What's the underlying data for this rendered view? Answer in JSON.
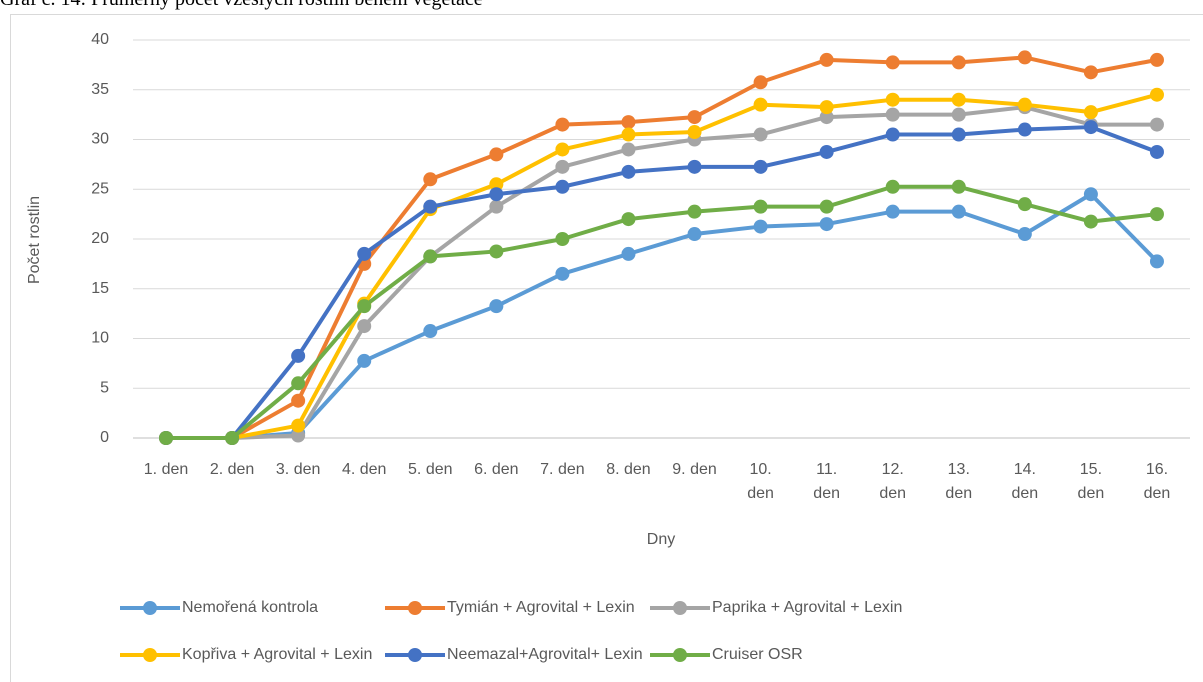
{
  "chart_data": {
    "type": "line",
    "title": "Graf č. 14: Průměrný počet vzešlých rostlin během vegetace",
    "x_label": "Dny",
    "y_label": "Počet rostlin",
    "categories": [
      "1. den",
      "2. den",
      "3. den",
      "4. den",
      "5. den",
      "6. den",
      "7. den",
      "8. den",
      "9. den",
      "10. den",
      "11. den",
      "12. den",
      "13. den",
      "14. den",
      "15. den",
      "16. den"
    ],
    "ylim": [
      0,
      40
    ],
    "yticks": [
      0,
      5,
      10,
      15,
      20,
      25,
      30,
      35,
      40
    ],
    "grid": true,
    "legend": "bottom",
    "series": [
      {
        "name": "Nemořená kontrola",
        "color": "#5B9BD5",
        "values": [
          0,
          0,
          0.5,
          7.75,
          10.75,
          13.25,
          16.5,
          18.5,
          20.5,
          21.25,
          21.5,
          22.75,
          22.75,
          20.5,
          24.5,
          17.75
        ]
      },
      {
        "name": "Tymián + Agrovital + Lexin",
        "color": "#ED7D31",
        "values": [
          0,
          0,
          3.75,
          17.5,
          26,
          28.5,
          31.5,
          31.75,
          32.25,
          35.75,
          38,
          37.75,
          37.75,
          38.25,
          36.75,
          38
        ]
      },
      {
        "name": "Paprika + Agrovital + Lexin",
        "color": "#A5A5A5",
        "values": [
          0,
          0,
          0.25,
          11.25,
          18.25,
          23.25,
          27.25,
          29,
          30,
          30.5,
          32.25,
          32.5,
          32.5,
          33.25,
          31.5,
          31.5
        ]
      },
      {
        "name": "Kopřiva + Agrovital + Lexin",
        "color": "#FFC000",
        "values": [
          0,
          0,
          1.25,
          13.5,
          23,
          25.5,
          29,
          30.5,
          30.75,
          33.5,
          33.25,
          34,
          34,
          33.5,
          32.75,
          34.5
        ]
      },
      {
        "name": "Neemazal+Agrovital+ Lexin",
        "color": "#4472C4",
        "values": [
          0,
          0,
          8.25,
          18.5,
          23.25,
          24.5,
          25.25,
          26.75,
          27.25,
          27.25,
          28.75,
          30.5,
          30.5,
          31,
          31.25,
          28.75
        ]
      },
      {
        "name": "Cruiser OSR",
        "color": "#70AD47",
        "values": [
          0,
          0,
          5.5,
          13.25,
          18.25,
          18.75,
          20,
          22,
          22.75,
          23.25,
          23.25,
          25.25,
          25.25,
          23.5,
          21.75,
          22.5
        ]
      }
    ]
  }
}
